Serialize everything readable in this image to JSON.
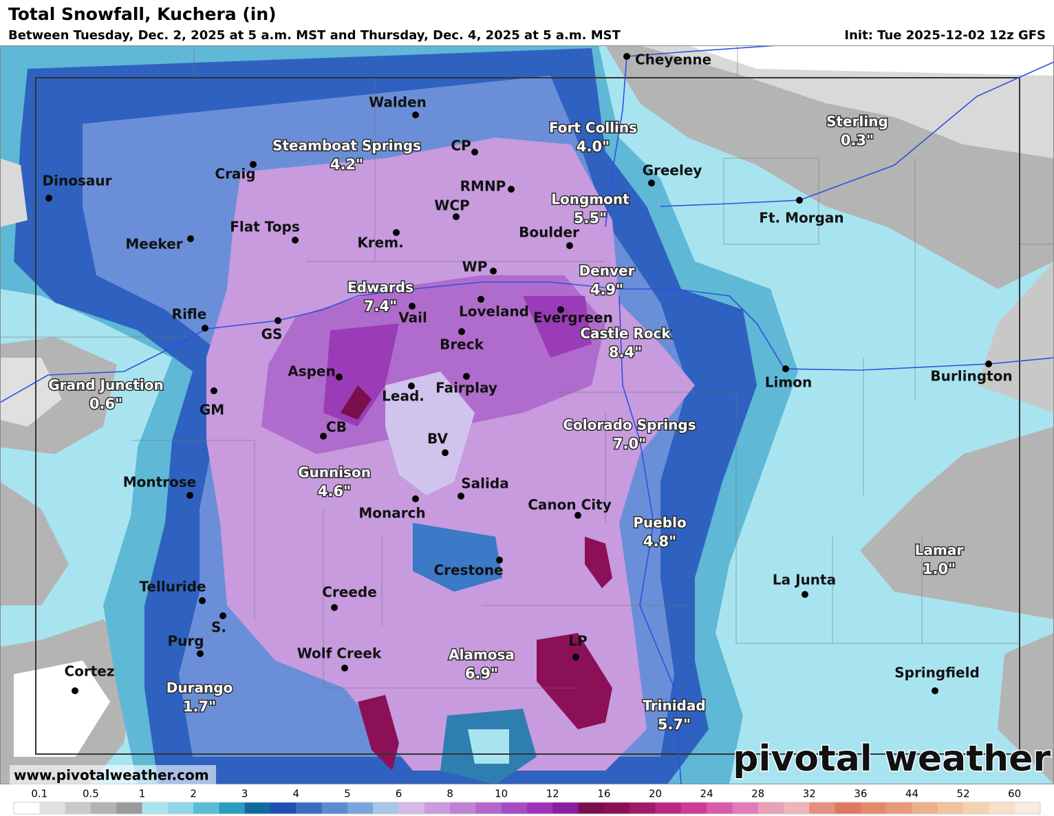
{
  "header": {
    "title": "Total Snowfall, Kuchera (in)",
    "subtitle": "Between Tuesday, Dec. 2, 2025 at 5 a.m. MST and Thursday, Dec. 4, 2025 at 5 a.m. MST",
    "init": "Init: Tue 2025-12-02 12z GFS"
  },
  "places": [
    {
      "name": "Cheyenne"
    },
    {
      "name": "Walden"
    },
    {
      "name": "Fort Collins",
      "amount": "4.0\""
    },
    {
      "name": "Steamboat Springs",
      "amount": "4.2\""
    },
    {
      "name": "CP"
    },
    {
      "name": "Craig"
    },
    {
      "name": "Greeley"
    },
    {
      "name": "Sterling",
      "amount": "0.3\""
    },
    {
      "name": "Dinosaur"
    },
    {
      "name": "RMNP"
    },
    {
      "name": "Longmont",
      "amount": "5.5\""
    },
    {
      "name": "Ft. Morgan"
    },
    {
      "name": "WCP"
    },
    {
      "name": "Flat Tops"
    },
    {
      "name": "Krem."
    },
    {
      "name": "Boulder"
    },
    {
      "name": "Meeker"
    },
    {
      "name": "WP"
    },
    {
      "name": "Denver",
      "amount": "4.9\""
    },
    {
      "name": "Edwards",
      "amount": "7.4\""
    },
    {
      "name": "Vail"
    },
    {
      "name": "Loveland"
    },
    {
      "name": "Evergreen"
    },
    {
      "name": "Rifle"
    },
    {
      "name": "GS"
    },
    {
      "name": "Castle Rock",
      "amount": "8.4\""
    },
    {
      "name": "Breck"
    },
    {
      "name": "Limon"
    },
    {
      "name": "Burlington"
    },
    {
      "name": "Aspen"
    },
    {
      "name": "Fairplay"
    },
    {
      "name": "Grand Junction",
      "amount": "0.6\""
    },
    {
      "name": "Lead."
    },
    {
      "name": "GM"
    },
    {
      "name": "CB"
    },
    {
      "name": "Colorado Springs",
      "amount": "7.0\""
    },
    {
      "name": "BV"
    },
    {
      "name": "Gunnison",
      "amount": "4.6\""
    },
    {
      "name": "Montrose"
    },
    {
      "name": "Salida"
    },
    {
      "name": "Monarch"
    },
    {
      "name": "Canon City"
    },
    {
      "name": "Pueblo",
      "amount": "4.8\""
    },
    {
      "name": "Lamar",
      "amount": "1.0\""
    },
    {
      "name": "Crestone"
    },
    {
      "name": "La Junta"
    },
    {
      "name": "Telluride"
    },
    {
      "name": "Creede"
    },
    {
      "name": "S."
    },
    {
      "name": "Purg"
    },
    {
      "name": "LP"
    },
    {
      "name": "Wolf Creek"
    },
    {
      "name": "Alamosa",
      "amount": "6.9\""
    },
    {
      "name": "Cortez"
    },
    {
      "name": "Springfield"
    },
    {
      "name": "Durango",
      "amount": "1.7\""
    },
    {
      "name": "Trinidad",
      "amount": "5.7\""
    }
  ],
  "watermark": "www.pivotalweather.com",
  "logo": "pivotal weather",
  "legend": {
    "ticks": [
      "0.1",
      "0.5",
      "1",
      "2",
      "3",
      "4",
      "5",
      "6",
      "8",
      "10",
      "12",
      "16",
      "20",
      "24",
      "28",
      "32",
      "36",
      "44",
      "52",
      "60"
    ],
    "colors": [
      "#ffffff",
      "#e2e2e2",
      "#c9c9c9",
      "#b3b3b3",
      "#9a9a9a",
      "#a8e4f0",
      "#8fd6ea",
      "#5bbcd8",
      "#2a9cc0",
      "#13689e",
      "#1f4fb0",
      "#3a6cc4",
      "#5a8ad0",
      "#7aa5dc",
      "#a8c6e8",
      "#d8b8e8",
      "#cc9ade",
      "#c080d6",
      "#b466cc",
      "#a84cc4",
      "#9c32b8",
      "#8a1e9e",
      "#7a0f4e",
      "#8c1055",
      "#a01a6a",
      "#b82884",
      "#cc3c98",
      "#d85aaa",
      "#e07ab8",
      "#e8a0b8",
      "#eeb4bc",
      "#e89080",
      "#e07860",
      "#e48868",
      "#e89a78",
      "#eeb088",
      "#f2c29c",
      "#f4d2b0",
      "#f6e0c8",
      "#f8ece0"
    ]
  }
}
